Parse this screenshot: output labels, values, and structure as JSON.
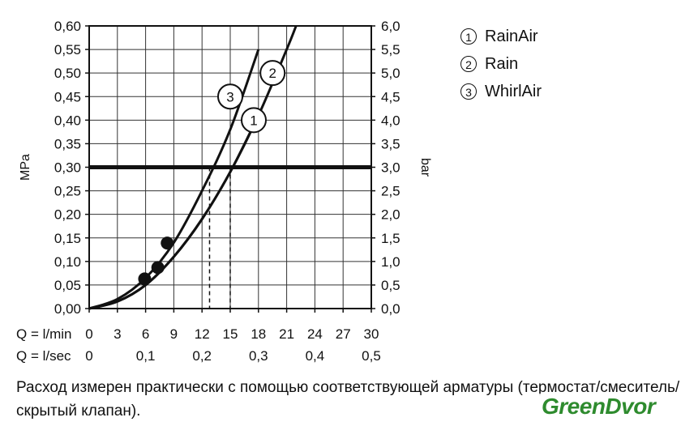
{
  "chart_data": {
    "type": "line",
    "left_axis": {
      "label": "MPa",
      "range": [
        0,
        0.6
      ],
      "ticks": [
        "0,00",
        "0,05",
        "0,10",
        "0,15",
        "0,20",
        "0,25",
        "0,30",
        "0,35",
        "0,40",
        "0,45",
        "0,50",
        "0,55",
        "0,60"
      ]
    },
    "right_axis": {
      "label": "bar",
      "range": [
        0,
        6
      ],
      "ticks": [
        "0,0",
        "0,5",
        "1,0",
        "1,5",
        "2,0",
        "2,5",
        "3,0",
        "3,5",
        "4,0",
        "4,5",
        "5,0",
        "5,5",
        "6,0"
      ]
    },
    "x_axis_lmin": {
      "label": "Q = l/min",
      "range": [
        0,
        30
      ],
      "ticks": [
        "0",
        "3",
        "6",
        "9",
        "12",
        "15",
        "18",
        "21",
        "24",
        "27",
        "30"
      ]
    },
    "x_axis_lsec": {
      "label": "Q = l/sec",
      "ticks": [
        "0",
        "0,1",
        "0,2",
        "0,3",
        "0,4",
        "0,5"
      ]
    },
    "reference_line": {
      "y": 0.3
    },
    "series": [
      {
        "name": "1",
        "x": [
          0,
          3,
          6,
          9,
          12,
          15,
          18
        ],
        "y": [
          0,
          0.015,
          0.05,
          0.11,
          0.19,
          0.29,
          0.41
        ]
      },
      {
        "name": "2",
        "x": [
          0,
          3,
          6,
          9,
          12,
          15,
          18,
          21,
          22
        ],
        "y": [
          0,
          0.015,
          0.05,
          0.11,
          0.19,
          0.29,
          0.41,
          0.55,
          0.6
        ]
      },
      {
        "name": "3",
        "x": [
          0,
          3,
          6,
          9,
          12,
          15,
          18
        ],
        "y": [
          0,
          0.02,
          0.065,
          0.14,
          0.25,
          0.38,
          0.55
        ]
      }
    ],
    "markers": [
      {
        "x": 5.9,
        "y": 0.063
      },
      {
        "x": 7.3,
        "y": 0.087
      },
      {
        "x": 8.3,
        "y": 0.139
      }
    ],
    "dashed_drops": [
      12.8,
      15.0
    ],
    "curve_labels": [
      {
        "text": "1",
        "x": 17.5,
        "y": 0.4
      },
      {
        "text": "2",
        "x": 19.5,
        "y": 0.5
      },
      {
        "text": "3",
        "x": 15.0,
        "y": 0.45
      }
    ]
  },
  "legend": [
    {
      "num": "1",
      "label": "RainAir"
    },
    {
      "num": "2",
      "label": "Rain"
    },
    {
      "num": "3",
      "label": "WhirlAir"
    }
  ],
  "footnote": "Расход измерен практически с помощью соответствующей арматуры (термостат/смеситель/скрытый клапан).",
  "logo": "GreenDvor"
}
